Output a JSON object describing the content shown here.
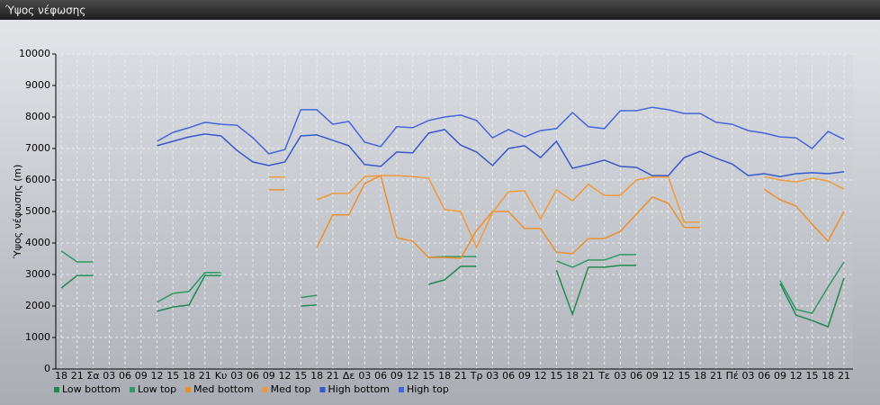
{
  "chart_data": {
    "type": "line",
    "title": "Ύψος νέφωσης",
    "y_label": "Ύψος νέφωσης (m)",
    "categories": [
      "18",
      "21",
      "Σα",
      "03",
      "06",
      "09",
      "12",
      "15",
      "18",
      "21",
      "Κυ",
      "03",
      "06",
      "09",
      "12",
      "15",
      "18",
      "21",
      "Δε",
      "03",
      "06",
      "09",
      "12",
      "15",
      "18",
      "21",
      "Τρ",
      "03",
      "06",
      "09",
      "12",
      "15",
      "18",
      "21",
      "Τε",
      "03",
      "06",
      "09",
      "12",
      "15",
      "18",
      "21",
      "Πέ",
      "03",
      "06",
      "09",
      "12",
      "15",
      "18",
      "21"
    ],
    "ylim": [
      0,
      10000
    ],
    "yticks": [
      0,
      1000,
      2000,
      3000,
      4000,
      5000,
      6000,
      7000,
      8000,
      9000,
      10000
    ],
    "grid": true,
    "series": [
      {
        "name": "Low bottom",
        "color": "#1f8a50",
        "values": [
          2570,
          2970,
          2970,
          null,
          null,
          null,
          1830,
          1970,
          2030,
          2970,
          2970,
          null,
          null,
          null,
          null,
          2000,
          2030,
          null,
          null,
          null,
          null,
          null,
          null,
          2690,
          2830,
          3260,
          3260,
          null,
          null,
          null,
          null,
          3140,
          1740,
          3230,
          3230,
          3290,
          3290,
          null,
          null,
          null,
          null,
          null,
          null,
          null,
          null,
          2710,
          1710,
          1540,
          1340,
          2890
        ]
      },
      {
        "name": "Low top",
        "color": "#2e9a62",
        "values": [
          3750,
          3400,
          3400,
          null,
          null,
          null,
          2120,
          2400,
          2460,
          3060,
          3060,
          null,
          null,
          null,
          null,
          2270,
          2340,
          null,
          null,
          null,
          null,
          null,
          null,
          3540,
          3570,
          3570,
          3570,
          null,
          null,
          null,
          null,
          3430,
          3230,
          3460,
          3460,
          3630,
          3630,
          null,
          null,
          null,
          null,
          null,
          null,
          null,
          null,
          2800,
          1890,
          1770,
          2600,
          3400
        ]
      },
      {
        "name": "Med bottom",
        "color": "#ee8f2c",
        "values": [
          null,
          null,
          null,
          null,
          null,
          null,
          null,
          null,
          null,
          null,
          null,
          null,
          null,
          5690,
          5690,
          null,
          3860,
          4890,
          4890,
          5890,
          6140,
          4170,
          4060,
          3540,
          3540,
          3510,
          4400,
          5000,
          5000,
          4460,
          4460,
          3710,
          3660,
          4140,
          4140,
          4370,
          4910,
          5460,
          5260,
          4490,
          4490,
          null,
          null,
          null,
          5710,
          5370,
          5170,
          4600,
          4060,
          5000
        ]
      },
      {
        "name": "Med top",
        "color": "#f29a3a",
        "values": [
          null,
          null,
          null,
          null,
          null,
          null,
          null,
          null,
          null,
          null,
          null,
          null,
          null,
          6090,
          6090,
          null,
          5370,
          5570,
          5570,
          6110,
          6140,
          6140,
          6110,
          6060,
          5060,
          5000,
          3860,
          4970,
          5630,
          5660,
          4770,
          5690,
          5340,
          5860,
          5510,
          5510,
          6000,
          6090,
          6090,
          4660,
          4660,
          null,
          null,
          null,
          6110,
          6000,
          5940,
          6060,
          5970,
          5710
        ]
      },
      {
        "name": "High bottom",
        "color": "#3558cc",
        "values": [
          null,
          null,
          null,
          null,
          null,
          null,
          7090,
          7230,
          7370,
          7460,
          7400,
          6940,
          6570,
          6460,
          6570,
          7400,
          7430,
          7260,
          7090,
          6490,
          6430,
          6890,
          6860,
          7490,
          7600,
          7110,
          6890,
          6460,
          7000,
          7090,
          6710,
          7230,
          6370,
          6490,
          6630,
          6430,
          6400,
          6140,
          6140,
          6710,
          6910,
          6690,
          6510,
          6140,
          6200,
          6110,
          6200,
          6230,
          6200,
          6260
        ]
      },
      {
        "name": "High top",
        "color": "#4466dd",
        "values": [
          null,
          null,
          null,
          null,
          null,
          null,
          7230,
          7510,
          7660,
          7830,
          7770,
          7740,
          7340,
          6830,
          6970,
          8230,
          8230,
          7770,
          7860,
          7200,
          7060,
          7690,
          7660,
          7890,
          8000,
          8060,
          7890,
          7340,
          7600,
          7370,
          7570,
          7630,
          8140,
          7690,
          7630,
          8200,
          8200,
          8310,
          8230,
          8110,
          8110,
          7830,
          7770,
          7570,
          7490,
          7370,
          7340,
          7000,
          7540,
          7290
        ]
      }
    ]
  }
}
